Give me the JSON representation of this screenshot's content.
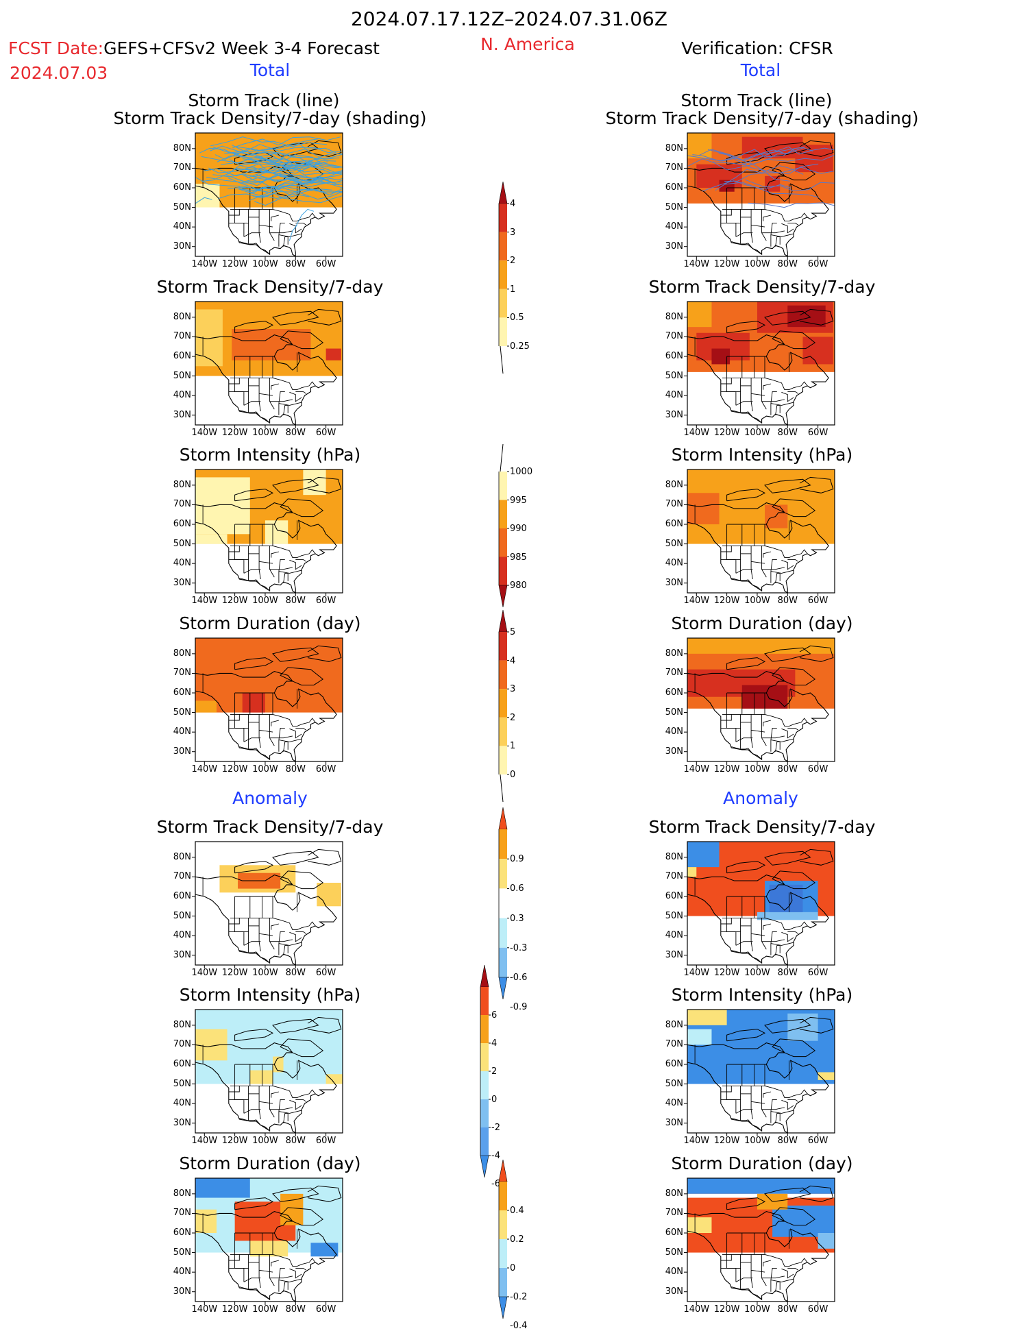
{
  "header": {
    "date_range": "2024.07.17.12Z–2024.07.31.06Z",
    "fcst_label": "FCST Date:",
    "forecast_title": "GEFS+CFSv2 Week 3-4 Forecast",
    "fcst_date": "2024.07.03",
    "region": "N. America",
    "verification": "Verification: CFSR"
  },
  "sections": {
    "total": "Total",
    "anomaly": "Anomaly"
  },
  "titles": {
    "track_line": "Storm Track (line)",
    "track_shading": "Storm Track Density/7-day (shading)",
    "density": "Storm Track Density/7-day",
    "intensity": "Storm Intensity (hPa)",
    "duration": "Storm Duration (day)"
  },
  "axes": {
    "lat_labels": [
      "80N",
      "70N",
      "60N",
      "50N",
      "40N",
      "30N"
    ],
    "lon_labels": [
      "140W",
      "120W",
      "100W",
      "80W",
      "60W"
    ]
  },
  "colorbars": {
    "density": {
      "labels": [
        "4",
        "3",
        "2",
        "1",
        "0.5",
        "0.25"
      ],
      "colors": [
        "#a50f15",
        "#d7301f",
        "#f06a1e",
        "#f7a11a",
        "#fcd05a",
        "#fff5b0"
      ]
    },
    "intensity": {
      "labels": [
        "1000",
        "995",
        "990",
        "985",
        "980"
      ],
      "colors": [
        "#fff5b0",
        "#f7a11a",
        "#f06a1e",
        "#d7301f",
        "#a50f15"
      ]
    },
    "duration": {
      "labels": [
        "5",
        "4",
        "3",
        "2",
        "1",
        "0"
      ],
      "colors": [
        "#a50f15",
        "#d7301f",
        "#f06a1e",
        "#f7a11a",
        "#fcd05a",
        "#fff5b0"
      ]
    },
    "density_anom": {
      "labels": [
        "0.9",
        "0.6",
        "0.3",
        "-0.3",
        "-0.6",
        "-0.9"
      ],
      "colors": [
        "#f04e1e",
        "#f7a11a",
        "#fbe27a",
        "#ffffff",
        "#bdeef8",
        "#7fbff0",
        "#3c8ee6"
      ]
    },
    "intensity_anom": {
      "labels": [
        "6",
        "4",
        "2",
        "0",
        "-2",
        "-4",
        "-6"
      ],
      "colors": [
        "#a50f15",
        "#f04e1e",
        "#f7a11a",
        "#fbe27a",
        "#bdeef8",
        "#7fbff0",
        "#5aa0ec",
        "#3c8ee6"
      ]
    },
    "duration_anom": {
      "labels": [
        "0.4",
        "0.2",
        "0",
        "-0.2",
        "-0.4"
      ],
      "colors": [
        "#f04e1e",
        "#f7a11a",
        "#fbe27a",
        "#bdeef8",
        "#7fbff0",
        "#3c8ee6"
      ]
    }
  },
  "palette": {
    "yellow": "#fff5b0",
    "gold": "#fcd05a",
    "orange": "#f7a11a",
    "darkorange": "#f06a1e",
    "red": "#d7301f",
    "darkred": "#a50f15",
    "lightblue": "#bdeef8",
    "midblue": "#7fbff0",
    "blue": "#3c8ee6",
    "track_line": "#3aa0e0"
  }
}
